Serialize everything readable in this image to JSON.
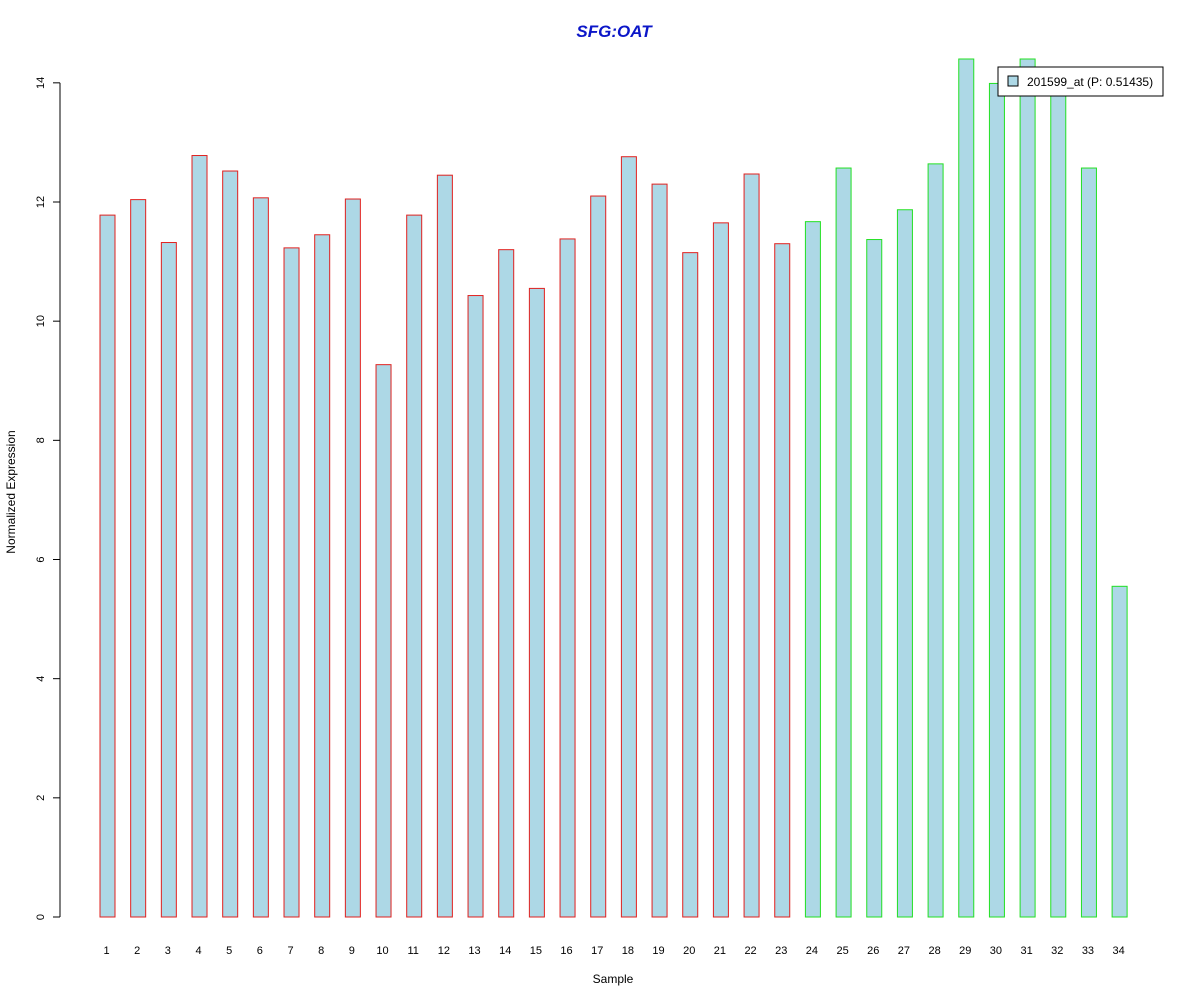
{
  "chart_data": {
    "type": "bar",
    "title": "SFG:OAT",
    "xlabel": "Sample",
    "ylabel": "Normalized Expression",
    "categories": [
      "1",
      "2",
      "3",
      "4",
      "5",
      "6",
      "7",
      "8",
      "9",
      "10",
      "11",
      "12",
      "13",
      "14",
      "15",
      "16",
      "17",
      "18",
      "19",
      "20",
      "21",
      "22",
      "23",
      "24",
      "25",
      "26",
      "27",
      "28",
      "29",
      "30",
      "31",
      "32",
      "33",
      "34"
    ],
    "series": [
      {
        "name": "201599_at (P: 0.51435)",
        "values": [
          11.78,
          12.04,
          11.32,
          12.78,
          12.52,
          12.07,
          11.23,
          11.45,
          12.05,
          9.27,
          11.78,
          12.45,
          10.43,
          11.2,
          10.55,
          11.38,
          12.1,
          12.76,
          12.3,
          11.15,
          11.65,
          12.47,
          11.3,
          11.67,
          12.57,
          11.37,
          11.87,
          12.64,
          14.4,
          13.99,
          14.4,
          14.05,
          12.57,
          5.55
        ],
        "fill": "#add8e6"
      }
    ],
    "groups": [
      {
        "samples": [
          1,
          23
        ],
        "border_color": "#e0201e"
      },
      {
        "samples": [
          24,
          34
        ],
        "border_color": "#22e022"
      }
    ],
    "yticks": [
      0,
      2,
      4,
      6,
      8,
      10,
      12,
      14
    ],
    "ylim": [
      0,
      14.4
    ],
    "grid": false,
    "legend_position": "top-right",
    "colors": {
      "title": "#0b16c8",
      "legend_swatch": "#add8e6"
    }
  }
}
